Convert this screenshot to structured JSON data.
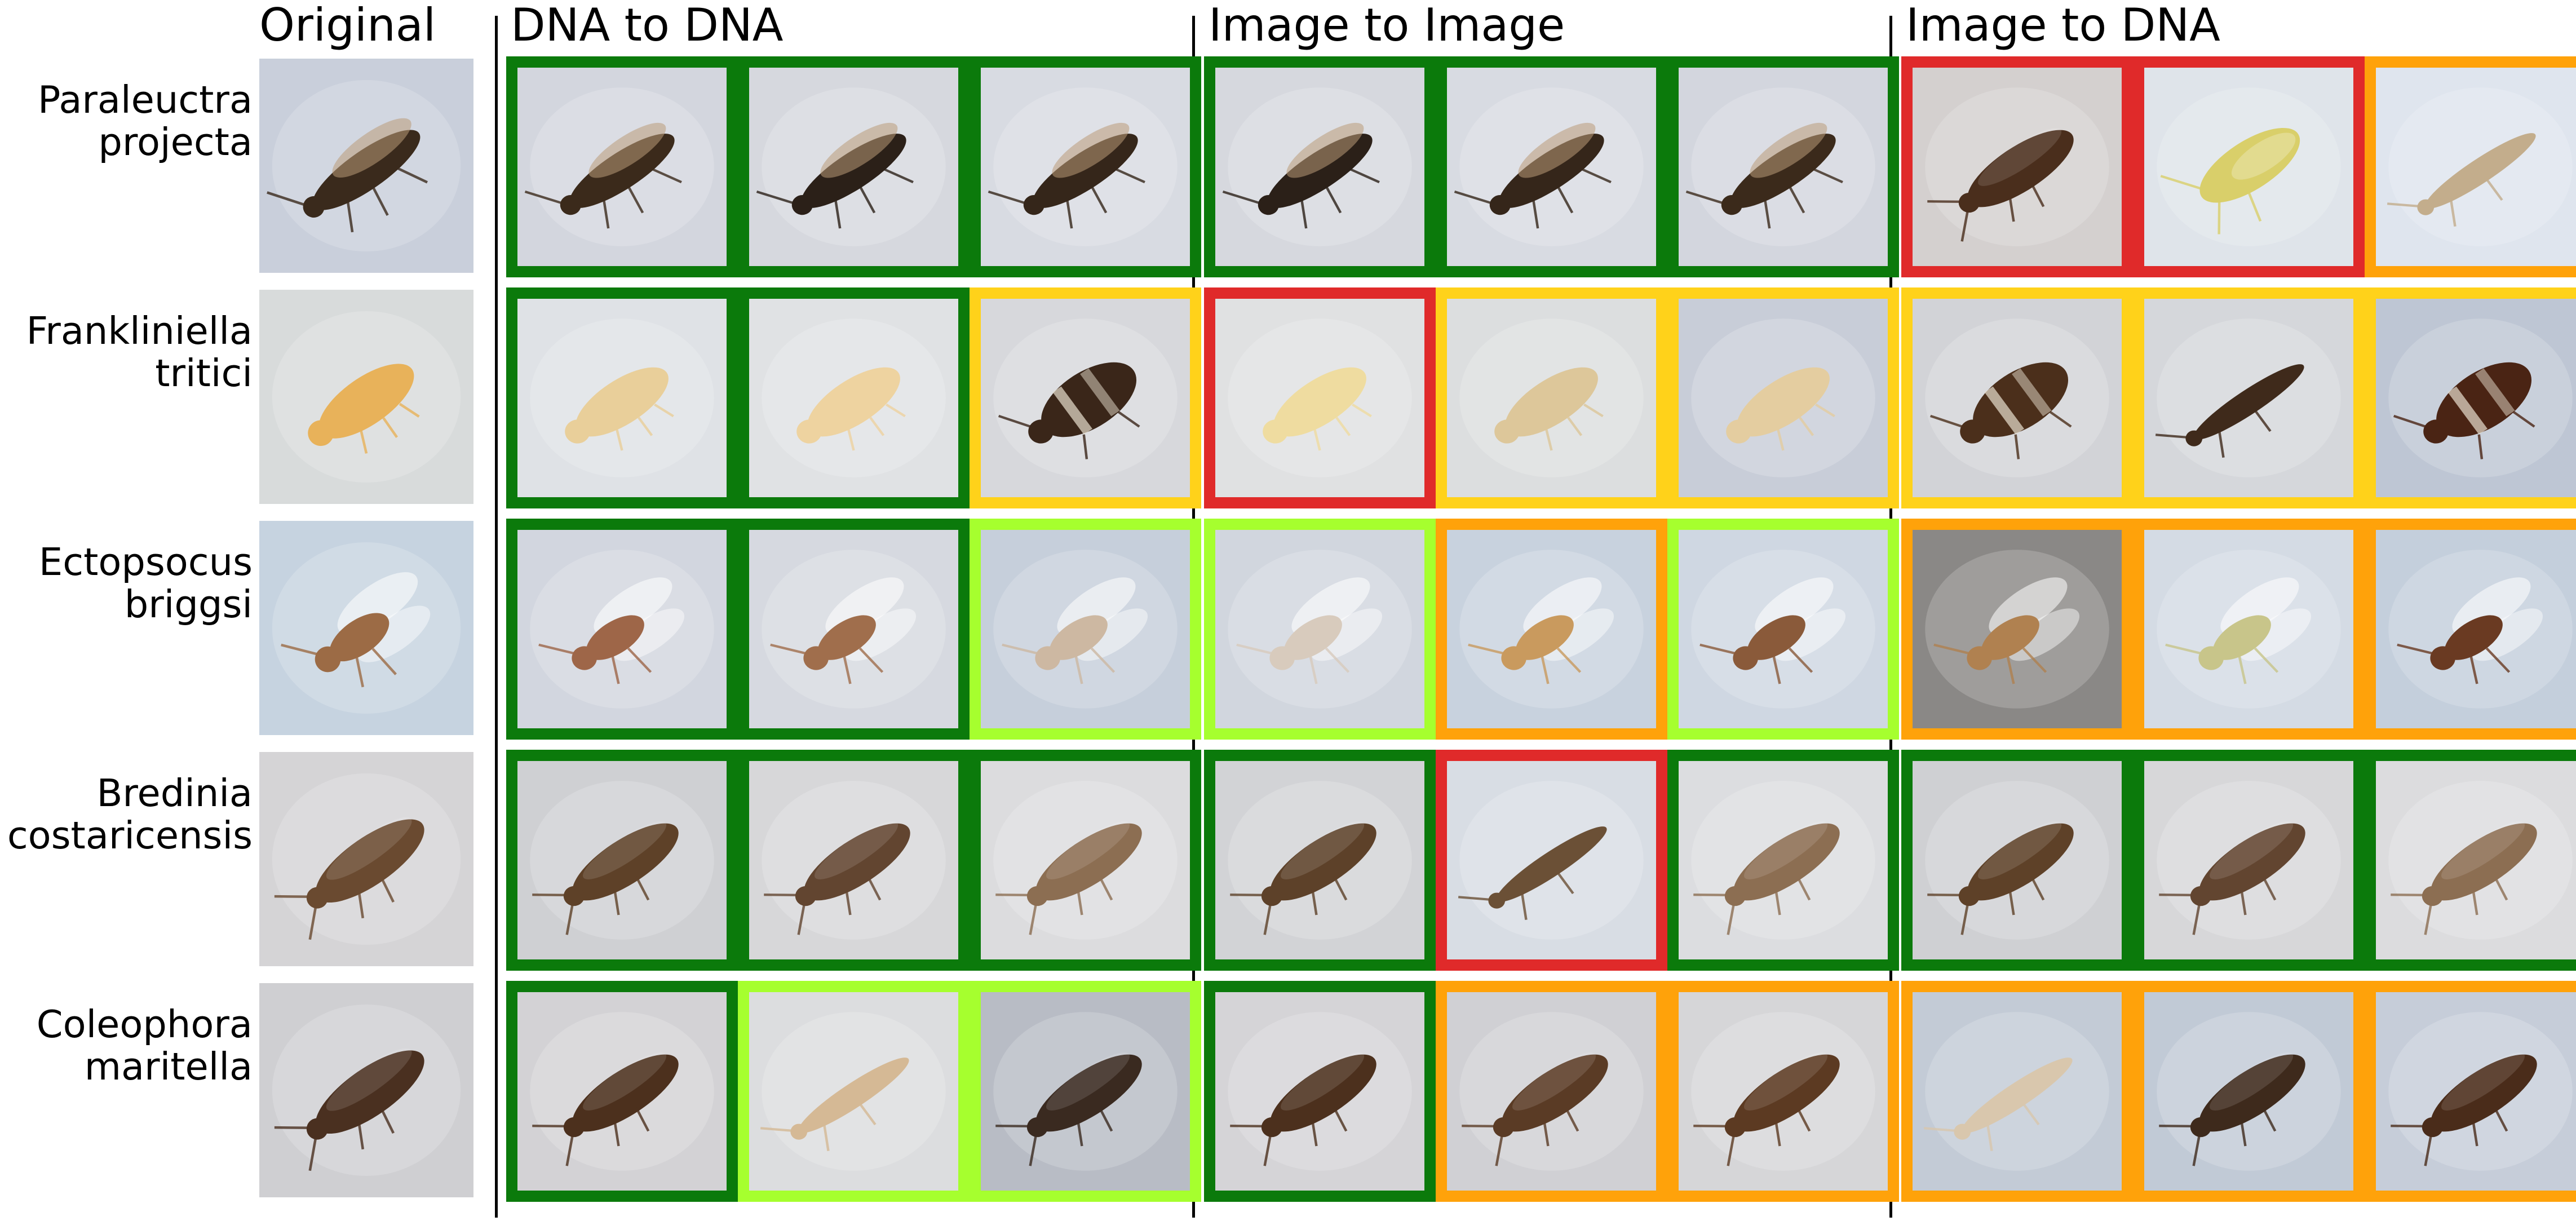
{
  "headers": {
    "original": "Original",
    "dna_to_dna": "DNA to DNA",
    "image_to_image": "Image to Image",
    "image_to_dna": "Image to DNA"
  },
  "match_colors": {
    "dark_green": "#0b7a0b",
    "light_green": "#a6ff2e",
    "yellow": "#ffd21a",
    "orange": "#ffa20a",
    "red": "#e02a2a"
  },
  "rows": [
    {
      "species_line1": "Paraleuctra",
      "species_line2": "projecta",
      "original": {
        "bg": "#c9cfdb",
        "body": "#3a2a1c",
        "shape": "stonefly"
      },
      "dna_to_dna": [
        {
          "border": "dark_green",
          "bg": "#d3d6de",
          "body": "#3b2a1b",
          "shape": "stonefly"
        },
        {
          "border": "dark_green",
          "bg": "#d6d8de",
          "body": "#2b2018",
          "shape": "stonefly"
        },
        {
          "border": "dark_green",
          "bg": "#d8dbe2",
          "body": "#35261a",
          "shape": "stonefly"
        }
      ],
      "image_to_image": [
        {
          "border": "dark_green",
          "bg": "#d6d8de",
          "body": "#2b2018",
          "shape": "stonefly"
        },
        {
          "border": "dark_green",
          "bg": "#d8dbe2",
          "body": "#35261a",
          "shape": "stonefly"
        },
        {
          "border": "dark_green",
          "bg": "#d3d6de",
          "body": "#3b2a1b",
          "shape": "stonefly"
        }
      ],
      "image_to_dna": [
        {
          "border": "red",
          "bg": "#d4d0cf",
          "body": "#4a2e1c",
          "shape": "moth"
        },
        {
          "border": "red",
          "bg": "#dfe4ea",
          "body": "#d9cf6a",
          "shape": "hopper"
        },
        {
          "border": "orange",
          "bg": "#dfe5ee",
          "body": "#c3ad8c",
          "shape": "thin"
        }
      ]
    },
    {
      "species_line1": "Frankliniella",
      "species_line2": "tritici",
      "original": {
        "bg": "#d8dbdb",
        "body": "#e8b25a",
        "shape": "larva"
      },
      "dna_to_dna": [
        {
          "border": "dark_green",
          "bg": "#dfe2e6",
          "body": "#e9cf9a",
          "shape": "larva"
        },
        {
          "border": "dark_green",
          "bg": "#e0e2e4",
          "body": "#eed3a0",
          "shape": "larva"
        },
        {
          "border": "yellow",
          "bg": "#d7d8dc",
          "body": "#3a2619",
          "shape": "beetle"
        }
      ],
      "image_to_image": [
        {
          "border": "red",
          "bg": "#e0e1e2",
          "body": "#efdca0",
          "shape": "larva"
        },
        {
          "border": "yellow",
          "bg": "#dcdedf",
          "body": "#ddc79a",
          "shape": "larva"
        },
        {
          "border": "yellow",
          "bg": "#c8cdd8",
          "body": "#e4cda0",
          "shape": "larva"
        }
      ],
      "image_to_dna": [
        {
          "border": "yellow",
          "bg": "#d2d3d7",
          "body": "#4b2f1b",
          "shape": "beetle"
        },
        {
          "border": "yellow",
          "bg": "#d5d7db",
          "body": "#3f2a1b",
          "shape": "thin"
        },
        {
          "border": "yellow",
          "bg": "#bec6d4",
          "body": "#4a2414",
          "shape": "beetle"
        }
      ]
    },
    {
      "species_line1": "Ectopsocus",
      "species_line2": "briggsi",
      "original": {
        "bg": "#c6d3e0",
        "body": "#9c6b45",
        "shape": "winged"
      },
      "dna_to_dna": [
        {
          "border": "dark_green",
          "bg": "#d2d6df",
          "body": "#9e6648",
          "shape": "winged"
        },
        {
          "border": "dark_green",
          "bg": "#d6d9e0",
          "body": "#a06e4c",
          "shape": "winged"
        },
        {
          "border": "light_green",
          "bg": "#c6cfdb",
          "body": "#cdb8a2",
          "shape": "winged"
        }
      ],
      "image_to_image": [
        {
          "border": "light_green",
          "bg": "#d1d6de",
          "body": "#d8cbbd",
          "shape": "winged"
        },
        {
          "border": "orange",
          "bg": "#c8d2de",
          "body": "#c99a5e",
          "shape": "winged"
        },
        {
          "border": "light_green",
          "bg": "#cfd7e2",
          "body": "#8a5a3a",
          "shape": "winged"
        }
      ],
      "image_to_dna": [
        {
          "border": "orange",
          "bg": "#8a8886",
          "body": "#b08150",
          "shape": "winged"
        },
        {
          "border": "orange",
          "bg": "#d4dbe4",
          "body": "#c8c58a",
          "shape": "winged"
        },
        {
          "border": "orange",
          "bg": "#c4cfdc",
          "body": "#6a3a22",
          "shape": "winged"
        }
      ]
    },
    {
      "species_line1": "Bredinia",
      "species_line2": "costaricensis",
      "original": {
        "bg": "#d5d4d6",
        "body": "#6a4a30",
        "shape": "moth"
      },
      "dna_to_dna": [
        {
          "border": "dark_green",
          "bg": "#cfd0d3",
          "body": "#5e4128",
          "shape": "moth"
        },
        {
          "border": "dark_green",
          "bg": "#d7d7d9",
          "body": "#624530",
          "shape": "moth"
        },
        {
          "border": "dark_green",
          "bg": "#dcdcde",
          "body": "#8c6e52",
          "shape": "moth"
        }
      ],
      "image_to_image": [
        {
          "border": "dark_green",
          "bg": "#d2d3d6",
          "body": "#5d4129",
          "shape": "moth"
        },
        {
          "border": "red",
          "bg": "#d8dde4",
          "body": "#6b5036",
          "shape": "thin"
        },
        {
          "border": "dark_green",
          "bg": "#dcdde0",
          "body": "#8c6e52",
          "shape": "moth"
        }
      ],
      "image_to_dna": [
        {
          "border": "dark_green",
          "bg": "#cfd0d3",
          "body": "#5e4128",
          "shape": "moth"
        },
        {
          "border": "dark_green",
          "bg": "#d7d7d9",
          "body": "#624530",
          "shape": "moth"
        },
        {
          "border": "dark_green",
          "bg": "#dcdcde",
          "body": "#8c6e52",
          "shape": "moth"
        }
      ]
    },
    {
      "species_line1": "Coleophora",
      "species_line2": "maritella",
      "original": {
        "bg": "#cfcfd2",
        "body": "#4a3020",
        "shape": "moth"
      },
      "dna_to_dna": [
        {
          "border": "dark_green",
          "bg": "#d3d2d5",
          "body": "#4c301d",
          "shape": "moth"
        },
        {
          "border": "light_green",
          "bg": "#dcdddf",
          "body": "#d5b995",
          "shape": "thin"
        },
        {
          "border": "light_green",
          "bg": "#b8bcc5",
          "body": "#3a2a20",
          "shape": "moth"
        }
      ],
      "image_to_image": [
        {
          "border": "dark_green",
          "bg": "#d5d4d7",
          "body": "#4c301d",
          "shape": "moth"
        },
        {
          "border": "orange",
          "bg": "#d0d0d4",
          "body": "#5a3b25",
          "shape": "moth"
        },
        {
          "border": "orange",
          "bg": "#d6d6d8",
          "body": "#5c3a22",
          "shape": "moth"
        }
      ],
      "image_to_dna": [
        {
          "border": "orange",
          "bg": "#c3cbd6",
          "body": "#d9c7ad",
          "shape": "thin"
        },
        {
          "border": "orange",
          "bg": "#c1cad6",
          "body": "#3e2a1c",
          "shape": "moth"
        },
        {
          "border": "orange",
          "bg": "#c6cdd9",
          "body": "#4a2c1a",
          "shape": "moth"
        }
      ]
    }
  ]
}
